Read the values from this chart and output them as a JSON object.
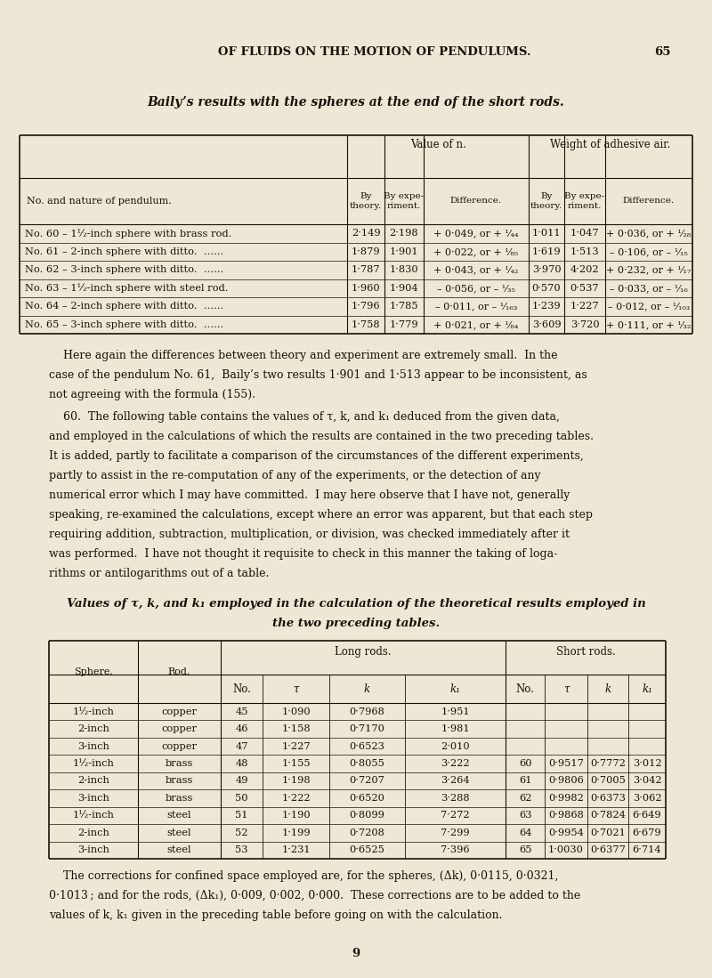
{
  "bg_color": "#ede8d5",
  "text_color": "#1a1008",
  "page_header": "OF FLUIDS ON THE MOTION OF PENDULUMS.",
  "page_number": "65",
  "italic_title": "Baily’s results with the spheres at the end of the short rods.",
  "table1_rows": [
    [
      "No. 60 – 1½-inch sphere with brass rod.",
      "2·149",
      "2·198",
      "+ 0·049, or + ¹⁄₄₄",
      "1·011",
      "1·047",
      "+ 0·036, or + ¹⁄₂₈"
    ],
    [
      "No. 61 – 2-inch sphere with ditto.  ......",
      "1·879",
      "1·901",
      "+ 0·022, or + ¹⁄₈₅",
      "1·619",
      "1·513",
      "– 0·106, or – ¹⁄₁₅"
    ],
    [
      "No. 62 – 3-inch sphere with ditto.  ......",
      "1·787",
      "1·830",
      "+ 0·043, or + ¹⁄₄₂",
      "3·970",
      "4·202",
      "+ 0·232, or + ¹⁄₁₇"
    ],
    [
      "No. 63 – 1½-inch sphere with steel rod.",
      "1·960",
      "1·904",
      "– 0·056, or – ¹⁄₃₅",
      "0·570",
      "0·537",
      "– 0·033, or – ¹⁄₁₆"
    ],
    [
      "No. 64 – 2-inch sphere with ditto.  ......",
      "1·796",
      "1·785",
      "– 0·011, or – ¹⁄₁₆₃",
      "1·239",
      "1·227",
      "– 0·012, or – ¹⁄₁₀₃"
    ],
    [
      "No. 65 – 3-inch sphere with ditto.  ......",
      "1·758",
      "1·779",
      "+ 0·021, or + ¹⁄₈₄",
      "3·609",
      "3·720",
      "+ 0·111, or + ¹⁄₃₂"
    ]
  ],
  "para1_lines": [
    "    Here again the differences between theory and experiment are extremely small.  In the",
    "case of the pendulum No. 61,  Baily’s two results 1·901 and 1·513 appear to be inconsistent, as",
    "not agreeing with the formula (155)."
  ],
  "para2_lines": [
    "    60.  The following table contains the values of τ, k, and k₁ deduced from the given data,",
    "and employed in the calculations of which the results are contained in the two preceding tables.",
    "It is added, partly to facilitate a comparison of the circumstances of the different experiments,",
    "partly to assist in the re-computation of any of the experiments, or the detection of any",
    "numerical error which I may have committed.  I may here observe that I have not, generally",
    "speaking, re-examined the calculations, except where an error was apparent, but that each step",
    "requiring addition, subtraction, multiplication, or division, was checked immediately after it",
    "was performed.  I have not thought it requisite to check in this manner the taking of loga-",
    "rithms or antilogarithms out of a table."
  ],
  "italic_title2_lines": [
    "Values of τ, k, and k₁ employed in the calculation of the theoretical results employed in",
    "the two preceding tables."
  ],
  "table2_rows": [
    [
      "1½-inch",
      "copper",
      "45",
      "1·090",
      "0·7968",
      "1·951",
      "",
      "",
      "",
      ""
    ],
    [
      "2-inch",
      "copper",
      "46",
      "1·158",
      "0·7170",
      "1·981",
      "",
      "",
      "",
      ""
    ],
    [
      "3-inch",
      "copper",
      "47",
      "1·227",
      "0·6523",
      "2·010",
      "",
      "",
      "",
      ""
    ],
    [
      "1½-inch",
      "brass",
      "48",
      "1·155",
      "0·8055",
      "3·222",
      "60",
      "0·9517",
      "0·7772",
      "3·012"
    ],
    [
      "2-inch",
      "brass",
      "49",
      "1·198",
      "0·7207",
      "3·264",
      "61",
      "0·9806",
      "0·7005",
      "3·042"
    ],
    [
      "3-inch",
      "brass",
      "50",
      "1·222",
      "0·6520",
      "3·288",
      "62",
      "0·9982",
      "0·6373",
      "3·062"
    ],
    [
      "1½-inch",
      "steel",
      "51",
      "1·190",
      "0·8099",
      "7·272",
      "63",
      "0·9868",
      "0·7824",
      "6·649"
    ],
    [
      "2-inch",
      "steel",
      "52",
      "1·199",
      "0·7208",
      "7·299",
      "64",
      "0·9954",
      "0·7021",
      "6·679"
    ],
    [
      "3-inch",
      "steel",
      "53",
      "1·231",
      "0·6525",
      "7·396",
      "65",
      "1·0030",
      "0·6377",
      "6·714"
    ]
  ],
  "para3_lines": [
    "    The corrections for confined space employed are, for the spheres, (Δk), 0·0115, 0·0321,",
    "0·1013 ; and for the rods, (Δk₁), 0·009, 0·002, 0·000.  These corrections are to be added to the",
    "values of k, k₁ given in the preceding table before going on with the calculation."
  ],
  "page_num_bottom": "9"
}
